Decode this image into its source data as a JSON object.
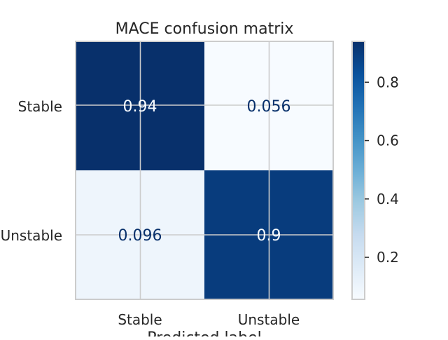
{
  "chart_data": {
    "type": "heatmap",
    "title": "MACE confusion matrix",
    "xlabel": "Predicted label",
    "ylabel": "",
    "x_categories": [
      "Stable",
      "Unstable"
    ],
    "y_categories": [
      "Stable",
      "Unstable"
    ],
    "values": [
      [
        0.94,
        0.056
      ],
      [
        0.096,
        0.9
      ]
    ],
    "value_labels": [
      [
        "0.94",
        "0.056"
      ],
      [
        "0.096",
        "0.9"
      ]
    ],
    "colormap": "Blues",
    "colorbar": {
      "ticks": [
        0.2,
        0.4,
        0.6,
        0.8
      ],
      "tick_labels": [
        "0.2",
        "0.4",
        "0.6",
        "0.8"
      ],
      "range": [
        0.056,
        0.94
      ]
    },
    "grid": true
  },
  "colors": {
    "text": "#262626",
    "frame": "#cccccc",
    "grid": "#cccccc",
    "light_cell_text": "#08306b",
    "dark_cell_text": "#f7fbff"
  }
}
